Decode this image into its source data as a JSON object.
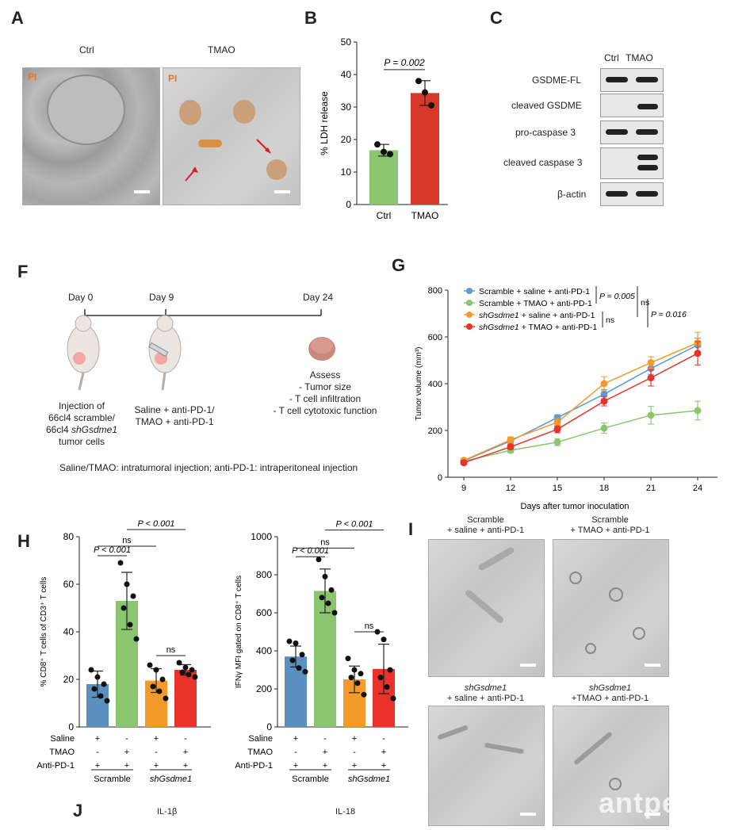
{
  "panels": {
    "A": {
      "label": "A",
      "ctrl_label": "Ctrl",
      "tmao_label": "TMAO",
      "pi_label": "PI"
    },
    "B": {
      "label": "B"
    },
    "C": {
      "label": "C",
      "lanes": [
        "Ctrl",
        "TMAO"
      ],
      "rows": [
        "GSDME-FL",
        "cleaved GSDME",
        "pro-caspase 3",
        "cleaved caspase 3",
        "β-actin"
      ]
    },
    "F": {
      "label": "F",
      "days": [
        "Day 0",
        "Day 9",
        "Day 24"
      ],
      "step1": [
        "Injection of",
        "66cl4 scramble/",
        "66cl4 ",
        "tumor cells"
      ],
      "step1_italic": "shGsdme1",
      "step2": [
        "Saline + anti-PD-1/",
        "TMAO + anti-PD-1"
      ],
      "assess_title": "Assess",
      "assess_items": [
        "- Tumor size",
        "- T cell infiltration",
        "- T cell cytotoxic function"
      ],
      "footnote": "Saline/TMAO: intratumoral injection; anti-PD-1: intraperitoneal injection"
    },
    "G": {
      "label": "G"
    },
    "H": {
      "label": "H"
    },
    "I": {
      "label": "I",
      "captions": [
        [
          "Scramble",
          "+ saline + anti-PD-1"
        ],
        [
          "Scramble",
          "+ TMAO + anti-PD-1"
        ],
        [
          "shGsdme1",
          "+ saline + anti-PD-1"
        ],
        [
          "shGsdme1",
          "+TMAO + anti-PD-1"
        ]
      ],
      "watermark": "antpedia"
    },
    "J": {
      "label": "J",
      "sub1": "IL-1β",
      "sub2": "IL-18"
    }
  },
  "chart_data": [
    {
      "id": "B",
      "type": "bar",
      "categories": [
        "Ctrl",
        "TMAO"
      ],
      "values": [
        16.7,
        34.3
      ],
      "errors": [
        1.8,
        3.8
      ],
      "points": [
        [
          18.5,
          16.2,
          15.5
        ],
        [
          38.0,
          34.5,
          30.5
        ]
      ],
      "colors": [
        "#8cc56f",
        "#d6382a"
      ],
      "ylabel": "%  LDH release",
      "ylim": [
        0,
        50
      ],
      "yticks": [
        0,
        10,
        20,
        30,
        40,
        50
      ],
      "annotation": "P = 0.002"
    },
    {
      "id": "G",
      "type": "line",
      "x": [
        9,
        12,
        15,
        18,
        21,
        24
      ],
      "xlabel": "Days after tumor inoculation",
      "ylabel": "Tumor volume (mm³)",
      "ylim": [
        0,
        800
      ],
      "yticks": [
        0,
        200,
        400,
        600,
        800
      ],
      "series": [
        {
          "name": "Scramble + saline + anti-PD-1",
          "color": "#5b9bd5",
          "values": [
            70,
            155,
            255,
            355,
            465,
            565
          ],
          "errors": [
            8,
            10,
            12,
            20,
            25,
            30
          ]
        },
        {
          "name": "Scramble + TMAO + anti-PD-1",
          "color": "#8cc56f",
          "values": [
            68,
            115,
            150,
            210,
            265,
            285
          ],
          "errors": [
            8,
            10,
            15,
            22,
            38,
            40
          ]
        },
        {
          "name": "shGsdme1 + saline + anti-PD-1",
          "color": "#f39a2a",
          "values": [
            72,
            160,
            235,
            400,
            490,
            575
          ],
          "errors": [
            8,
            12,
            18,
            30,
            25,
            45
          ]
        },
        {
          "name": "shGsdme1 + TMAO + anti-PD-1",
          "color": "#e8322a",
          "values": [
            62,
            130,
            205,
            325,
            425,
            530
          ],
          "errors": [
            8,
            10,
            15,
            20,
            35,
            50
          ]
        }
      ],
      "stats": [
        "P = 0.005",
        "ns",
        "ns",
        "P = 0.016"
      ]
    },
    {
      "id": "H1",
      "type": "bar",
      "categories": [
        "1",
        "2",
        "3",
        "4"
      ],
      "values": [
        18,
        53,
        19.5,
        24
      ],
      "errors": [
        5.5,
        12,
        5,
        2.2
      ],
      "points": [
        [
          24,
          21,
          18,
          16,
          13,
          11
        ],
        [
          69,
          60,
          55,
          50,
          43,
          37
        ],
        [
          26,
          24,
          20,
          17,
          15,
          12
        ],
        [
          27,
          25,
          24,
          23,
          22,
          21
        ]
      ],
      "colors": [
        "#5b8fc0",
        "#8cc56f",
        "#f39a2a",
        "#e8322a"
      ],
      "ylabel": "% CD8⁺ T cells of CD3⁺ T cells",
      "ylim": [
        0,
        80
      ],
      "yticks": [
        0,
        20,
        40,
        60,
        80
      ],
      "stats": [
        "P < 0.001",
        "ns",
        "P < 0.001",
        "ns"
      ],
      "rows": [
        {
          "label": "Saline",
          "signs": [
            "+",
            "-",
            "+",
            "-"
          ]
        },
        {
          "label": "TMAO",
          "signs": [
            "-",
            "+",
            "-",
            "+"
          ]
        },
        {
          "label": "Anti-PD-1",
          "signs": [
            "+",
            "+",
            "+",
            "+"
          ]
        }
      ],
      "groups": [
        "Scramble",
        "shGsdme1"
      ]
    },
    {
      "id": "H2",
      "type": "bar",
      "categories": [
        "1",
        "2",
        "3",
        "4"
      ],
      "values": [
        370,
        715,
        250,
        305
      ],
      "errors": [
        55,
        115,
        70,
        130
      ],
      "points": [
        [
          450,
          440,
          380,
          350,
          310,
          290
        ],
        [
          880,
          790,
          720,
          680,
          650,
          600
        ],
        [
          360,
          300,
          280,
          260,
          230,
          170
        ],
        [
          500,
          460,
          300,
          260,
          210,
          150
        ]
      ],
      "colors": [
        "#5b8fc0",
        "#8cc56f",
        "#f39a2a",
        "#e8322a"
      ],
      "ylabel": "IFNγ MFI gated on CD8⁺ T cells",
      "ylim": [
        0,
        1000
      ],
      "yticks": [
        0,
        200,
        400,
        600,
        800,
        1000
      ],
      "stats": [
        "P < 0.001",
        "ns",
        "P < 0.001",
        "ns"
      ],
      "rows": [
        {
          "label": "Saline",
          "signs": [
            "+",
            "-",
            "+",
            "-"
          ]
        },
        {
          "label": "TMAO",
          "signs": [
            "-",
            "+",
            "-",
            "+"
          ]
        },
        {
          "label": "Anti-PD-1",
          "signs": [
            "+",
            "+",
            "+",
            "+"
          ]
        }
      ],
      "groups": [
        "Scramble",
        "shGsdme1"
      ]
    }
  ]
}
